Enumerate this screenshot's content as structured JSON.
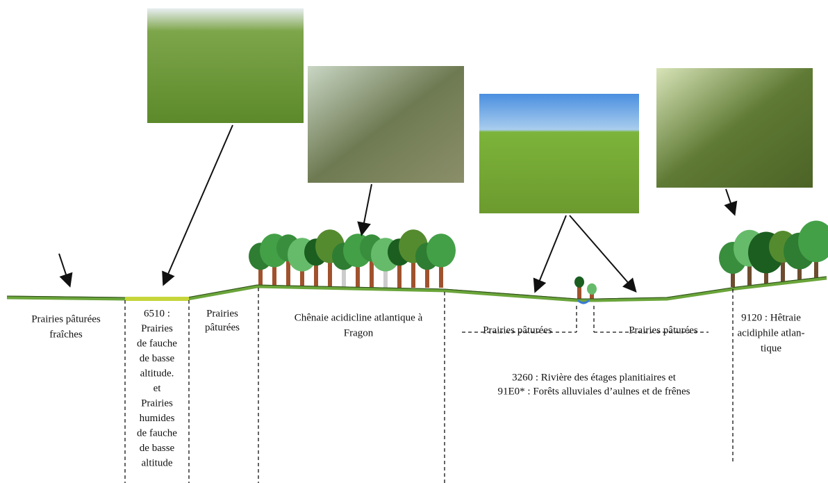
{
  "zones": [
    {
      "lines": [
        "Prairies pâturées",
        "fraîches"
      ]
    },
    {
      "lines": [
        "6510 :",
        "Prairies",
        "de fauche",
        "de basse",
        "altitude.",
        "et",
        "Prairies",
        "humides",
        "de fauche",
        "de basse",
        "altitude"
      ]
    },
    {
      "lines": [
        "Prairies",
        "pâturées"
      ]
    },
    {
      "lines": [
        "Chênaie acidicline atlantique à",
        "Fragon"
      ]
    },
    {
      "lines": [
        "Prairies pâturées"
      ]
    },
    {
      "lines": [
        "Prairies pâturées"
      ]
    },
    {
      "lines": [
        "3260 : Rivière des étages planitiaires et",
        "91E0* : Forêts alluviales d’aulnes et de frênes"
      ]
    },
    {
      "lines": [
        "9120 : Hêtraie",
        "acidiphile atlan-",
        "tique"
      ]
    }
  ]
}
